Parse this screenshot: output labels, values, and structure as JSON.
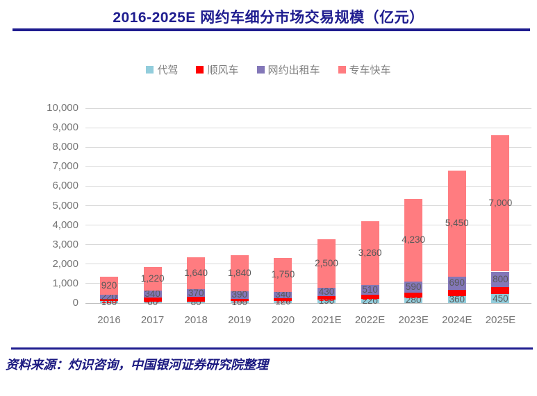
{
  "header": {
    "title": "2016-2025E 网约车细分市场交易规模（亿元）",
    "accent_color": "#1e1c8f"
  },
  "footer": {
    "source": "资料来源：灼识咨询，中国银河证券研究院整理",
    "rule_color": "#1e1c8f",
    "text_color": "#1a1880"
  },
  "chart_data": {
    "type": "bar",
    "stacked": true,
    "title": "2016-2025E 网约车细分市场交易规模（亿元）",
    "xlabel": "",
    "ylabel": "",
    "ylim": [
      0,
      10000
    ],
    "ytick_step": 1000,
    "grid": true,
    "legend_position": "top",
    "categories": [
      "2016",
      "2017",
      "2018",
      "2019",
      "2020",
      "2021E",
      "2022E",
      "2023E",
      "2024E",
      "2025E"
    ],
    "series": [
      {
        "name": "代驾",
        "color": "#92cddc",
        "label_color": "#595959",
        "values": [
          100,
          60,
          80,
          100,
          120,
          190,
          220,
          280,
          360,
          450
        ]
      },
      {
        "name": "顺风车",
        "color": "#ff0000",
        "label_color": "#ff0000",
        "values": [
          120,
          240,
          250,
          130,
          120,
          150,
          200,
          250,
          310,
          370
        ]
      },
      {
        "name": "网约出租车",
        "color": "#8377b8",
        "label_color": "#595959",
        "values": [
          220,
          340,
          370,
          390,
          340,
          430,
          510,
          590,
          690,
          800
        ]
      },
      {
        "name": "专车快车",
        "color": "#ff7c80",
        "label_color": "#595959",
        "values": [
          920,
          1220,
          1640,
          1840,
          1750,
          2500,
          3260,
          4230,
          5450,
          7000
        ]
      }
    ],
    "axis_text_color": "#757575",
    "gridline_color": "#d9d9d9"
  }
}
